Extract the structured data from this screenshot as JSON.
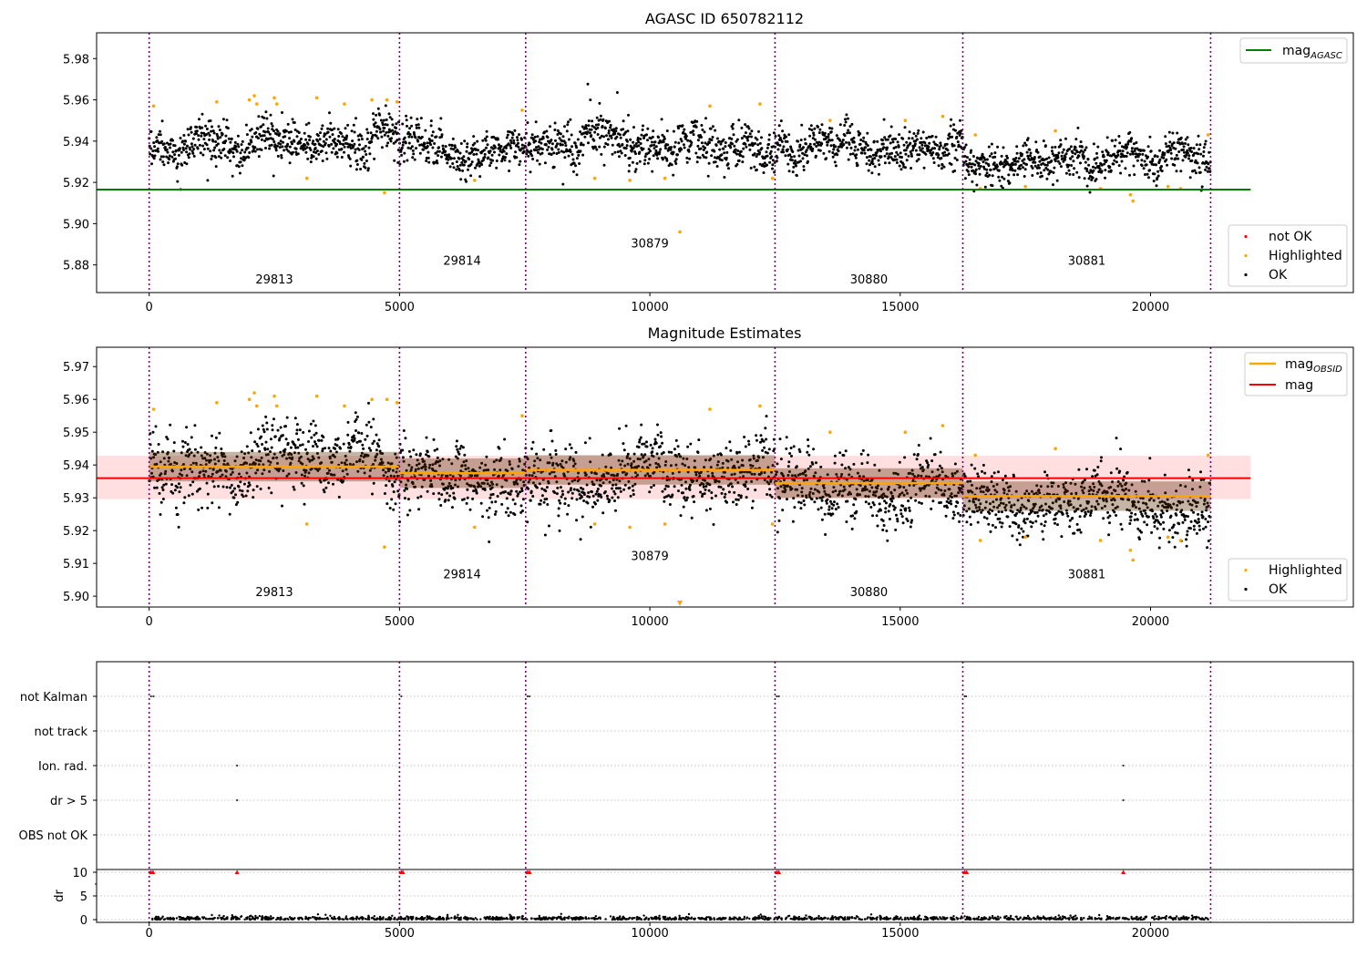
{
  "panels": [
    {
      "id": "top",
      "title": "AGASC ID 650782112",
      "type": "scatter",
      "xlim": [
        -1050,
        24050
      ],
      "ylim": [
        5.8666,
        5.9925
      ],
      "xticks": [
        0,
        5000,
        10000,
        15000,
        20000
      ],
      "yticks": [
        5.88,
        5.9,
        5.92,
        5.94,
        5.96,
        5.98
      ],
      "ytick_labels": [
        "5.88",
        "5.90",
        "5.92",
        "5.94",
        "5.96",
        "5.98"
      ],
      "lines": [
        {
          "name": "mag_AGASC",
          "color": "#008000",
          "y": 5.9165,
          "x": [
            -1050,
            22000
          ]
        }
      ],
      "dot_segments": [
        {
          "x": [
            0,
            5000
          ],
          "mean": 5.9395,
          "sd": 0.0065
        },
        {
          "x": [
            5000,
            7520
          ],
          "mean": 5.9375,
          "sd": 0.0065
        },
        {
          "x": [
            7520,
            12500
          ],
          "mean": 5.9385,
          "sd": 0.0068
        },
        {
          "x": [
            12500,
            16250
          ],
          "mean": 5.9345,
          "sd": 0.006
        },
        {
          "x": [
            16250,
            21200
          ],
          "mean": 5.9305,
          "sd": 0.006
        }
      ],
      "highlighted_points": [
        [
          90,
          5.957
        ],
        [
          1350,
          5.959
        ],
        [
          2000,
          5.96
        ],
        [
          2100,
          5.962
        ],
        [
          2150,
          5.958
        ],
        [
          2500,
          5.961
        ],
        [
          2550,
          5.958
        ],
        [
          3150,
          5.922
        ],
        [
          3350,
          5.961
        ],
        [
          3900,
          5.958
        ],
        [
          4450,
          5.96
        ],
        [
          4700,
          5.915
        ],
        [
          4750,
          5.96
        ],
        [
          4950,
          5.959
        ],
        [
          6500,
          5.921
        ],
        [
          7450,
          5.955
        ],
        [
          8900,
          5.922
        ],
        [
          9600,
          5.921
        ],
        [
          10300,
          5.922
        ],
        [
          10600,
          5.896
        ],
        [
          11200,
          5.957
        ],
        [
          12200,
          5.958
        ],
        [
          12450,
          5.922
        ],
        [
          13600,
          5.95
        ],
        [
          15100,
          5.95
        ],
        [
          15850,
          5.952
        ],
        [
          16500,
          5.943
        ],
        [
          16600,
          5.917
        ],
        [
          17500,
          5.918
        ],
        [
          18100,
          5.945
        ],
        [
          19000,
          5.917
        ],
        [
          19600,
          5.914
        ],
        [
          19650,
          5.911
        ],
        [
          20350,
          5.918
        ],
        [
          20600,
          5.917
        ],
        [
          21150,
          5.943
        ]
      ],
      "obsid_labels": [
        {
          "text": "29813",
          "x": 2500,
          "y": 5.871
        },
        {
          "text": "29814",
          "x": 6250,
          "y": 5.88
        },
        {
          "text": "30879",
          "x": 10000,
          "y": 5.8885
        },
        {
          "text": "30880",
          "x": 14375,
          "y": 5.871
        },
        {
          "text": "30881",
          "x": 18725,
          "y": 5.88
        }
      ],
      "legends": [
        {
          "position": "upper right",
          "entries": [
            {
              "label": "mag",
              "sub": "AGASC",
              "kind": "line",
              "color": "#008000"
            }
          ]
        },
        {
          "position": "lower right",
          "entries": [
            {
              "label": "not OK",
              "kind": "dot",
              "color": "#ff0000"
            },
            {
              "label": "Highlighted",
              "kind": "dot",
              "color": "#ffa500"
            },
            {
              "label": "OK",
              "kind": "dot",
              "color": "#000000"
            }
          ]
        }
      ]
    },
    {
      "id": "middle",
      "title": "Magnitude Estimates",
      "type": "scatter",
      "xlim": [
        -1050,
        24050
      ],
      "ylim": [
        5.8967,
        5.9759
      ],
      "xticks": [
        0,
        5000,
        10000,
        15000,
        20000
      ],
      "yticks": [
        5.9,
        5.91,
        5.92,
        5.93,
        5.94,
        5.95,
        5.96,
        5.97
      ],
      "ytick_labels": [
        "5.90",
        "5.91",
        "5.92",
        "5.93",
        "5.94",
        "5.95",
        "5.96",
        "5.97"
      ],
      "band": {
        "y": [
          5.9296,
          5.9428
        ],
        "x": [
          -1050,
          22000
        ],
        "color": "#ffdfe0"
      },
      "lines": [
        {
          "name": "mag",
          "color": "#ff0000",
          "y": 5.936,
          "x": [
            -1050,
            22000
          ]
        }
      ],
      "obsid_mag_segments": [
        {
          "x": [
            0,
            5000
          ],
          "y": 5.9395
        },
        {
          "x": [
            5000,
            7520
          ],
          "y": 5.9375
        },
        {
          "x": [
            7520,
            12500
          ],
          "y": 5.9385
        },
        {
          "x": [
            12500,
            16250
          ],
          "y": 5.9345
        },
        {
          "x": [
            16250,
            21200
          ],
          "y": 5.9305
        }
      ],
      "obsid_labels": [
        {
          "text": "29813",
          "x": 2500,
          "y": 5.9
        },
        {
          "text": "29814",
          "x": 6250,
          "y": 5.9055
        },
        {
          "text": "30879",
          "x": 10000,
          "y": 5.911
        },
        {
          "text": "30880",
          "x": 14375,
          "y": 5.9
        },
        {
          "text": "30881",
          "x": 18725,
          "y": 5.9055
        }
      ],
      "legends": [
        {
          "position": "upper right",
          "entries": [
            {
              "label": "mag",
              "sub": "OBSID",
              "kind": "line",
              "color": "#ffa500"
            },
            {
              "label": "mag",
              "kind": "line",
              "color": "#ff0000"
            }
          ]
        },
        {
          "position": "lower right",
          "entries": [
            {
              "label": "Highlighted",
              "kind": "dot",
              "color": "#ffa500"
            },
            {
              "label": "OK",
              "kind": "dot",
              "color": "#000000"
            }
          ]
        }
      ]
    },
    {
      "id": "flags",
      "type": "scatter",
      "xlim": [
        -1050,
        24050
      ],
      "categories": [
        "not Kalman",
        "not track",
        "Ion. rad.",
        "dr > 5",
        "OBS not OK"
      ],
      "flag_points": [
        {
          "category": "not Kalman",
          "x": [
            0,
            50,
            5000,
            7520,
            7560,
            12500,
            12540,
            16250,
            16280
          ]
        },
        {
          "category": "Ion. rad.",
          "x": [
            1720,
            19420
          ]
        },
        {
          "category": "dr > 5",
          "x": [
            1720,
            19420
          ]
        }
      ],
      "dr_axis": {
        "ylabel": "dr",
        "yticks": [
          0,
          5,
          10
        ],
        "ylim": [
          -0.5,
          10.5
        ]
      },
      "dr_high_points": [
        0,
        40,
        5000,
        5030,
        7520,
        7560,
        12500,
        12540,
        16250,
        16290,
        1720,
        19420
      ],
      "xticks": [
        0,
        5000,
        10000,
        15000,
        20000
      ]
    }
  ],
  "obsid_boundaries": [
    0,
    5000,
    7520,
    12500,
    16250,
    21200
  ],
  "colors": {
    "ok": "#000000",
    "highlighted": "#ffa500",
    "not_ok": "#ff0000",
    "agasc_line": "#008000",
    "mag_line": "#ff0000",
    "obsid_line": "#ffa500",
    "boundary": "#800080",
    "grid": "#b0b0b0"
  }
}
